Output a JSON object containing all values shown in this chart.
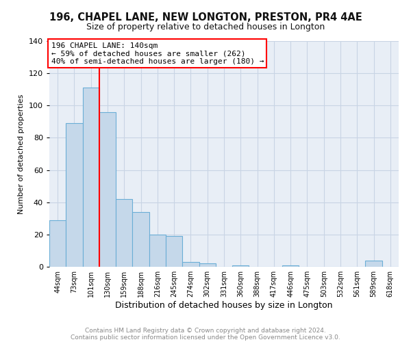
{
  "title1": "196, CHAPEL LANE, NEW LONGTON, PRESTON, PR4 4AE",
  "title2": "Size of property relative to detached houses in Longton",
  "xlabel": "Distribution of detached houses by size in Longton",
  "ylabel": "Number of detached properties",
  "bin_labels": [
    "44sqm",
    "73sqm",
    "101sqm",
    "130sqm",
    "159sqm",
    "188sqm",
    "216sqm",
    "245sqm",
    "274sqm",
    "302sqm",
    "331sqm",
    "360sqm",
    "388sqm",
    "417sqm",
    "446sqm",
    "475sqm",
    "503sqm",
    "532sqm",
    "561sqm",
    "589sqm",
    "618sqm"
  ],
  "bin_values": [
    29,
    89,
    111,
    96,
    42,
    34,
    20,
    19,
    3,
    2,
    0,
    1,
    0,
    0,
    1,
    0,
    0,
    0,
    0,
    4,
    0
  ],
  "bar_color": "#c5d8ea",
  "bar_edge_color": "#6aaed6",
  "ylim": [
    0,
    140
  ],
  "yticks": [
    0,
    20,
    40,
    60,
    80,
    100,
    120,
    140
  ],
  "vline_x": 3.0,
  "vline_color": "red",
  "annotation_title": "196 CHAPEL LANE: 140sqm",
  "annotation_line1": "← 59% of detached houses are smaller (262)",
  "annotation_line2": "40% of semi-detached houses are larger (180) →",
  "annotation_box_color": "white",
  "annotation_box_edge_color": "red",
  "footer1": "Contains HM Land Registry data © Crown copyright and database right 2024.",
  "footer2": "Contains public sector information licensed under the Open Government Licence v3.0.",
  "fig_bg_color": "#ffffff",
  "plot_bg_color": "#e8eef6",
  "grid_color": "#c8d4e4",
  "title1_fontsize": 10.5,
  "title2_fontsize": 9,
  "ylabel_fontsize": 8,
  "xlabel_fontsize": 9,
  "ytick_fontsize": 8,
  "xtick_fontsize": 7,
  "annotation_fontsize": 8,
  "footer_fontsize": 6.5
}
